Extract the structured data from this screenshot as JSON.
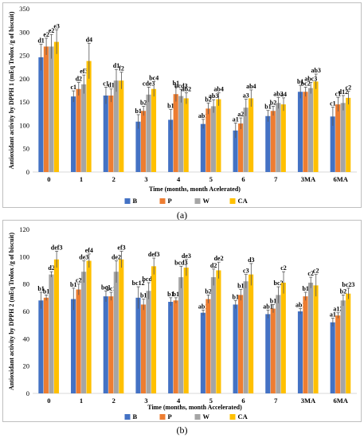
{
  "colors": {
    "B": "#4472c4",
    "P": "#ed7d31",
    "W": "#a5a5a5",
    "CA": "#ffc000"
  },
  "chart_data": [
    {
      "type": "bar",
      "panel_label": "(a)",
      "ylabel": "Antioxidant activity by DPPH 1 (mEq Trolox /g of biscuit)",
      "xlabel": "Time (months, month Acelerated)",
      "ylim": [
        0,
        350
      ],
      "yticks": [
        0,
        50,
        100,
        150,
        200,
        250,
        300,
        350
      ],
      "categories": [
        "0",
        "1",
        "2",
        "3",
        "4",
        "5",
        "6",
        "7",
        "3MA",
        "6MA"
      ],
      "legend_position": "bottom",
      "series": [
        {
          "name": "B",
          "values": [
            246,
            162,
            164,
            108,
            112,
            103,
            89,
            120,
            172,
            119
          ],
          "errors": [
            28,
            12,
            18,
            15,
            22,
            10,
            16,
            12,
            14,
            20
          ],
          "labels": [
            "d1",
            "c1",
            "c1",
            "b1",
            "b1",
            "ab1",
            "a1",
            "b1",
            "b1",
            "c1"
          ]
        },
        {
          "name": "P",
          "values": [
            269,
            178,
            164,
            131,
            167,
            136,
            104,
            131,
            172,
            145
          ],
          "errors": [
            18,
            14,
            14,
            10,
            16,
            12,
            12,
            10,
            10,
            15
          ],
          "labels": [
            "e2",
            "d2",
            "d1",
            "b2",
            "b1",
            "b2",
            "a2",
            "b2",
            "bc2",
            "c1"
          ]
        },
        {
          "name": "W",
          "values": [
            269,
            188,
            196,
            166,
            163,
            141,
            138,
            148,
            180,
            148
          ],
          "errors": [
            26,
            20,
            24,
            16,
            14,
            14,
            18,
            12,
            12,
            16
          ],
          "labels": [
            "e2",
            "ef3",
            "d1",
            "cde3",
            "bcd3",
            "ab3",
            "a3",
            "ab3",
            "abc3",
            "d12"
          ]
        },
        {
          "name": "CA",
          "values": [
            279,
            238,
            196,
            178,
            158,
            156,
            158,
            145,
            194,
            159
          ],
          "errors": [
            26,
            38,
            18,
            16,
            12,
            14,
            18,
            14,
            16,
            14
          ],
          "labels": [
            "e3",
            "d4",
            "f2",
            "bc4",
            "ab2",
            "ab4",
            "ab4",
            "a4",
            "ab3",
            "c2"
          ]
        }
      ]
    },
    {
      "type": "bar",
      "panel_label": "(b)",
      "ylabel": "Antioxidant activity by DPPH 2 (mEq Trolox /g of biscuit)",
      "xlabel": "Time (months, month Accelerated)",
      "ylim": [
        0,
        120
      ],
      "yticks": [
        0,
        20,
        40,
        60,
        80,
        100,
        120
      ],
      "categories": [
        "0",
        "1",
        "2",
        "3",
        "4",
        "5",
        "6",
        "7",
        "3MA",
        "6MA"
      ],
      "legend_position": "bottom",
      "series": [
        {
          "name": "B",
          "values": [
            68,
            69,
            71,
            70,
            67,
            59,
            65,
            58,
            60,
            52
          ],
          "errors": [
            6,
            8,
            4,
            8,
            3,
            2,
            3,
            3,
            2,
            3
          ],
          "labels": [
            "b1",
            "b1",
            "bc1",
            "bc12",
            "b1",
            "ab1",
            "b1",
            "ab1",
            "ab1",
            "a1"
          ]
        },
        {
          "name": "P",
          "values": [
            70,
            76,
            71,
            65,
            68,
            69,
            72,
            62,
            71,
            57
          ],
          "errors": [
            2,
            4,
            3,
            4,
            2,
            3,
            4,
            3,
            3,
            2
          ],
          "labels": [
            "b1",
            "c2",
            "bc1",
            "b1",
            "b1",
            "b2",
            "b1",
            "b1",
            "b1",
            "a12"
          ]
        },
        {
          "name": "W",
          "values": [
            87,
            89,
            89,
            75,
            85,
            85,
            82,
            72,
            81,
            68
          ],
          "errors": [
            2,
            8,
            8,
            6,
            8,
            6,
            5,
            6,
            4,
            4
          ],
          "labels": [
            "d2",
            "de3",
            "de2",
            "bcd2",
            "bcd3",
            "d2",
            "c3",
            "bc2",
            "c2",
            "b2"
          ]
        },
        {
          "name": "CA",
          "values": [
            98,
            97,
            98,
            93,
            92,
            90,
            87,
            81,
            79,
            73
          ],
          "errors": [
            6,
            5,
            6,
            6,
            6,
            6,
            8,
            8,
            8,
            4
          ],
          "labels": [
            "def3",
            "ef4",
            "ef3",
            "def3",
            "de3",
            "de2",
            "d3",
            "c2",
            "c2",
            "bc23"
          ]
        }
      ]
    }
  ]
}
